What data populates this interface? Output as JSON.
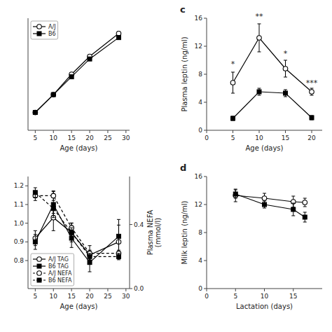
{
  "chart_data": [
    {
      "type": "line",
      "x": [
        5,
        10,
        15,
        20,
        28
      ],
      "series": [
        {
          "name": "A/J",
          "values": [
            3.5,
            7.0,
            11.0,
            14.5,
            19.0
          ],
          "errors": [
            0.08,
            0.15,
            0.25,
            0.25,
            0.35
          ],
          "color": "#000000",
          "marker": "circle",
          "line_style": "solid"
        },
        {
          "name": "B6",
          "values": [
            3.5,
            7.0,
            10.5,
            14.0,
            18.2
          ],
          "errors": [
            0.08,
            0.15,
            0.25,
            0.25,
            0.35
          ],
          "color": "#000000",
          "marker": "square",
          "line_style": "solid"
        }
      ],
      "x_label": "Age (days)",
      "xlim": [
        3,
        31
      ],
      "ylim": [
        0,
        22
      ],
      "xticks": [
        5,
        10,
        15,
        20,
        25,
        30
      ],
      "tick_labels": "x",
      "legend": "upper left"
    },
    {
      "type": "line",
      "title": "c",
      "x": [
        5,
        10,
        15,
        20
      ],
      "series": [
        {
          "values": [
            6.8,
            13.2,
            8.8,
            5.5
          ],
          "errors": [
            1.5,
            2.0,
            1.2,
            0.5
          ],
          "color": "#000000",
          "marker": "circle",
          "line_style": "solid"
        },
        {
          "values": [
            1.7,
            5.5,
            5.3,
            1.8
          ],
          "errors": [
            0.3,
            0.5,
            0.5,
            0.3
          ],
          "color": "#000000",
          "marker": "square",
          "line_style": "solid"
        }
      ],
      "annotations": [
        {
          "text": "*",
          "x": 5,
          "y": 9.0
        },
        {
          "text": "**",
          "x": 10,
          "y": 15.8
        },
        {
          "text": "*",
          "x": 15,
          "y": 10.5
        },
        {
          "text": "***",
          "x": 20,
          "y": 6.3
        }
      ],
      "x_label": "Age (days)",
      "y_label": "Plasma leptin (ng/ml)",
      "xlim": [
        0,
        22
      ],
      "ylim": [
        0,
        16
      ],
      "xticks": [
        0,
        5,
        10,
        15,
        20
      ],
      "yticks": [
        0,
        4,
        8,
        12,
        16
      ]
    },
    {
      "type": "line",
      "x": [
        5,
        10,
        15,
        20,
        28
      ],
      "series": [
        {
          "name": "A/J TAG",
          "values": [
            0.92,
            1.03,
            0.95,
            0.83,
            0.9
          ],
          "errors": [
            0.04,
            0.07,
            0.05,
            0.05,
            0.09
          ],
          "color": "#000000",
          "marker": "circle",
          "line_style": "solid"
        },
        {
          "name": "B6 TAG",
          "values": [
            0.9,
            1.1,
            0.92,
            0.79,
            0.93
          ],
          "errors": [
            0.04,
            0.07,
            0.05,
            0.05,
            0.09
          ],
          "color": "#000000",
          "marker": "square",
          "line_style": "solid"
        },
        {
          "name": "A/J NEFA",
          "axis": "y2",
          "values": [
            0.58,
            0.58,
            0.38,
            0.22,
            0.22
          ],
          "errors": [
            0.03,
            0.03,
            0.03,
            0.02,
            0.02
          ],
          "color": "#000000",
          "marker": "circle",
          "line_style": "dashed"
        },
        {
          "name": "B6 NEFA",
          "axis": "y2",
          "values": [
            0.6,
            0.5,
            0.35,
            0.2,
            0.2
          ],
          "errors": [
            0.03,
            0.03,
            0.03,
            0.02,
            0.02
          ],
          "color": "#000000",
          "marker": "square",
          "line_style": "dashed"
        }
      ],
      "x_label": "Age (days)",
      "y2_label": "Plasma NEFA\n(mmol/l)",
      "xlim": [
        3,
        31
      ],
      "ylim": [
        0.65,
        1.25
      ],
      "y2lim": [
        0.0,
        0.7
      ],
      "xticks": [
        5,
        10,
        15,
        20,
        25,
        30
      ],
      "yticks": [
        0.8,
        0.9,
        {
          "value": 1.0,
          "label": "1.0"
        },
        1.1,
        1.2
      ],
      "y2ticks": [
        {
          "value": 0.0,
          "label": "0.0"
        },
        0.4
      ],
      "legend": "lower left"
    },
    {
      "type": "line",
      "title": "d",
      "x": [
        5,
        10,
        15,
        17
      ],
      "series": [
        {
          "values": [
            13.3,
            12.9,
            12.4,
            12.3
          ],
          "errors": [
            0.9,
            0.7,
            0.8,
            0.6
          ],
          "color": "#000000",
          "marker": "circle",
          "line_style": "solid"
        },
        {
          "values": [
            13.5,
            12.0,
            11.3,
            10.2
          ],
          "errors": [
            0.6,
            0.5,
            0.9,
            0.7
          ],
          "color": "#000000",
          "marker": "square",
          "line_style": "solid"
        }
      ],
      "x_label": "Lactation (days)",
      "y_label": "Milk leptin (ng/ml)",
      "xlim": [
        0,
        20
      ],
      "ylim": [
        0,
        16
      ],
      "xticks": [
        0,
        5,
        10,
        15
      ],
      "yticks": [
        0,
        4,
        8,
        12,
        16
      ]
    }
  ]
}
